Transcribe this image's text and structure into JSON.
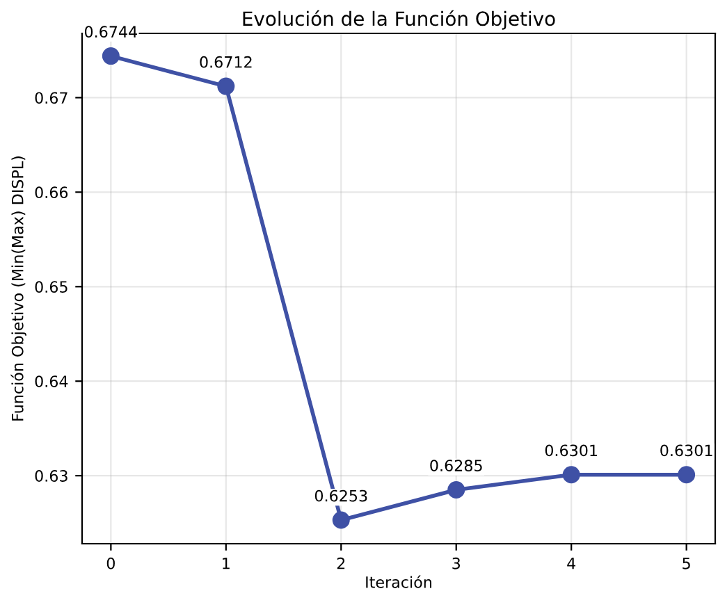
{
  "chart_data": {
    "type": "line",
    "title": "Evolución de la Función Objetivo",
    "xlabel": "Iteración",
    "ylabel": "Función Objetivo (Min(Max) DISPL)",
    "x": [
      0,
      1,
      2,
      3,
      4,
      5
    ],
    "series": [
      {
        "color": "#3f51a5",
        "values": [
          0.6744,
          0.6712,
          0.6253,
          0.6285,
          0.6301,
          0.6301
        ]
      }
    ],
    "data_labels": true,
    "marker": "circle",
    "line_style": "solid",
    "grid": true,
    "xlim": [
      -0.25,
      5.25
    ],
    "xticks": [
      0,
      1,
      2,
      3,
      4,
      5
    ],
    "ylim": [
      0.6228,
      0.6768
    ],
    "yticks": [
      0.63,
      0.64,
      0.65,
      0.66,
      0.67
    ]
  }
}
